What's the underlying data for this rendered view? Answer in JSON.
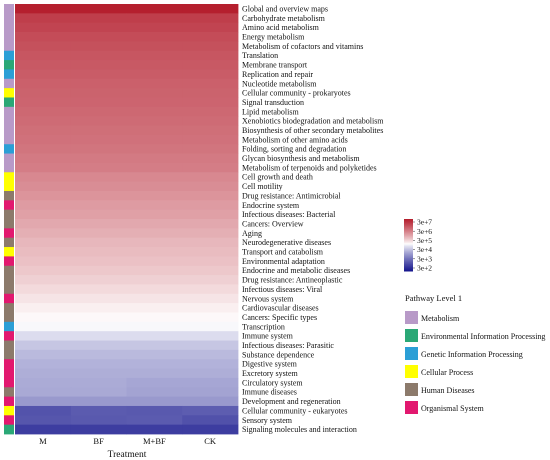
{
  "chart_data": {
    "type": "heatmap",
    "xlabel": "Treatment",
    "columns": [
      "M",
      "BF",
      "M+BF",
      "CK"
    ],
    "rows": [
      {
        "label": "Global and overview maps",
        "level1": "Metabolism",
        "values": [
          32000000.0,
          32000000.0,
          32000000.0,
          32000000.0
        ]
      },
      {
        "label": "Carbohydrate metabolism",
        "level1": "Metabolism",
        "values": [
          12000000.0,
          12000000.0,
          12000000.0,
          12000000.0
        ]
      },
      {
        "label": "Amino acid metabolism",
        "level1": "Metabolism",
        "values": [
          10000000.0,
          10000000.0,
          10000000.0,
          10000000.0
        ]
      },
      {
        "label": "Energy metabolism",
        "level1": "Metabolism",
        "values": [
          8000000.0,
          8000000.0,
          8000000.0,
          8000000.0
        ]
      },
      {
        "label": "Metabolism of cofactors and vitamins",
        "level1": "Metabolism",
        "values": [
          7000000.0,
          7000000.0,
          7000000.0,
          7000000.0
        ]
      },
      {
        "label": "Translation",
        "level1": "Genetic Information Processing",
        "values": [
          6000000.0,
          6000000.0,
          6000000.0,
          6000000.0
        ]
      },
      {
        "label": "Membrane transport",
        "level1": "Environmental Information Processing",
        "values": [
          5500000.0,
          5500000.0,
          5500000.0,
          5500000.0
        ]
      },
      {
        "label": "Replication and repair",
        "level1": "Genetic Information Processing",
        "values": [
          5000000.0,
          5000000.0,
          5000000.0,
          5000000.0
        ]
      },
      {
        "label": "Nucleotide metabolism",
        "level1": "Metabolism",
        "values": [
          4500000.0,
          4500000.0,
          4500000.0,
          4500000.0
        ]
      },
      {
        "label": "Cellular community - prokaryotes",
        "level1": "Cellular Process",
        "values": [
          4200000.0,
          4200000.0,
          4200000.0,
          4200000.0
        ]
      },
      {
        "label": "Signal transduction",
        "level1": "Environmental Information Processing",
        "values": [
          4000000.0,
          4000000.0,
          4000000.0,
          4000000.0
        ]
      },
      {
        "label": "Lipid metabolism",
        "level1": "Metabolism",
        "values": [
          3600000.0,
          3600000.0,
          3600000.0,
          3600000.0
        ]
      },
      {
        "label": "Xenobiotics biodegradation and metabolism",
        "level1": "Metabolism",
        "values": [
          3300000.0,
          3300000.0,
          3300000.0,
          3300000.0
        ]
      },
      {
        "label": "Biosynthesis of other secondary metabolites",
        "level1": "Metabolism",
        "values": [
          3000000.0,
          3000000.0,
          3000000.0,
          3000000.0
        ]
      },
      {
        "label": "Metabolism of other amino acids",
        "level1": "Metabolism",
        "values": [
          2800000.0,
          2800000.0,
          2800000.0,
          2800000.0
        ]
      },
      {
        "label": "Folding, sorting and degradation",
        "level1": "Genetic Information Processing",
        "values": [
          2500000.0,
          2500000.0,
          2500000.0,
          2500000.0
        ]
      },
      {
        "label": "Glycan biosynthesis and metabolism",
        "level1": "Metabolism",
        "values": [
          2200000.0,
          2200000.0,
          2200000.0,
          2200000.0
        ]
      },
      {
        "label": "Metabolism of terpenoids and polyketides",
        "level1": "Metabolism",
        "values": [
          2000000.0,
          2000000.0,
          2000000.0,
          2000000.0
        ]
      },
      {
        "label": "Cell growth and death",
        "level1": "Cellular Process",
        "values": [
          1500000.0,
          1500000.0,
          1500000.0,
          1500000.0
        ]
      },
      {
        "label": "Cell motility",
        "level1": "Cellular Process",
        "values": [
          1300000.0,
          1300000.0,
          1300000.0,
          1300000.0
        ]
      },
      {
        "label": "Drug resistance: Antimicrobial",
        "level1": "Human Diseases",
        "values": [
          1100000.0,
          1100000.0,
          1100000.0,
          1100000.0
        ]
      },
      {
        "label": "Endocrine system",
        "level1": "Organismal System",
        "values": [
          900000.0,
          900000.0,
          900000.0,
          900000.0
        ]
      },
      {
        "label": "Infectious diseases: Bacterial",
        "level1": "Human Diseases",
        "values": [
          800000.0,
          800000.0,
          800000.0,
          800000.0
        ]
      },
      {
        "label": "Cancers: Overview",
        "level1": "Human Diseases",
        "values": [
          650000.0,
          650000.0,
          650000.0,
          650000.0
        ]
      },
      {
        "label": "Aging",
        "level1": "Organismal System",
        "values": [
          550000.0,
          550000.0,
          550000.0,
          550000.0
        ]
      },
      {
        "label": "Neurodegenerative diseases",
        "level1": "Human Diseases",
        "values": [
          450000.0,
          450000.0,
          450000.0,
          450000.0
        ]
      },
      {
        "label": "Transport and catabolism",
        "level1": "Cellular Process",
        "values": [
          400000.0,
          400000.0,
          400000.0,
          400000.0
        ]
      },
      {
        "label": "Environmental adaptation",
        "level1": "Organismal System",
        "values": [
          350000.0,
          350000.0,
          350000.0,
          350000.0
        ]
      },
      {
        "label": "Endocrine and metabolic diseases",
        "level1": "Human Diseases",
        "values": [
          300000.0,
          300000.0,
          300000.0,
          300000.0
        ]
      },
      {
        "label": "Drug resistance: Antineoplastic",
        "level1": "Human Diseases",
        "values": [
          250000.0,
          250000.0,
          250000.0,
          250000.0
        ]
      },
      {
        "label": "Infectious diseases: Viral",
        "level1": "Human Diseases",
        "values": [
          200000.0,
          200000.0,
          200000.0,
          200000.0
        ]
      },
      {
        "label": "Nervous system",
        "level1": "Organismal System",
        "values": [
          160000.0,
          160000.0,
          160000.0,
          160000.0
        ]
      },
      {
        "label": "Cardiovascular diseases",
        "level1": "Human Diseases",
        "values": [
          130000.0,
          130000.0,
          130000.0,
          130000.0
        ]
      },
      {
        "label": "Cancers: Specific types",
        "level1": "Human Diseases",
        "values": [
          110000.0,
          110000.0,
          110000.0,
          110000.0
        ]
      },
      {
        "label": "Transcription",
        "level1": "Genetic Information Processing",
        "values": [
          90000.0,
          90000.0,
          90000.0,
          90000.0
        ]
      },
      {
        "label": "Immune system",
        "level1": "Organismal System",
        "values": [
          50000.0,
          50000.0,
          50000.0,
          50000.0
        ]
      },
      {
        "label": "Infectious diseases: Parasitic",
        "level1": "Human Diseases",
        "values": [
          30000.0,
          30000.0,
          30000.0,
          30000.0
        ]
      },
      {
        "label": "Substance dependence",
        "level1": "Human Diseases",
        "values": [
          22000.0,
          22000.0,
          22000.0,
          22000.0
        ]
      },
      {
        "label": "Digestive system",
        "level1": "Organismal System",
        "values": [
          18000.0,
          18000.0,
          18000.0,
          18000.0
        ]
      },
      {
        "label": "Excretory system",
        "level1": "Organismal System",
        "values": [
          16000.0,
          16000.0,
          16000.0,
          16000.0
        ]
      },
      {
        "label": "Circulatory system",
        "level1": "Organismal System",
        "values": [
          15000.0,
          15000.0,
          13000.0,
          13000.0
        ]
      },
      {
        "label": "Immune diseases",
        "level1": "Human Diseases",
        "values": [
          14000.0,
          14000.0,
          12000.0,
          12000.0
        ]
      },
      {
        "label": "Development and regeneration",
        "level1": "Organismal System",
        "values": [
          9000.0,
          9000.0,
          9000.0,
          9000.0
        ]
      },
      {
        "label": "Cellular community - eukaryotes",
        "level1": "Cellular Process",
        "values": [
          1200.0,
          1500.0,
          1400.0,
          1600.0
        ]
      },
      {
        "label": "Sensory system",
        "level1": "Organismal System",
        "values": [
          1300.0,
          1400.0,
          1500.0,
          1100.0
        ]
      },
      {
        "label": "Signaling molecules and interaction",
        "level1": "Environmental Information Processing",
        "values": [
          600.0,
          600.0,
          600.0,
          600.0
        ]
      }
    ],
    "colorbar": {
      "scale": "log",
      "range": [
        200,
        30000000
      ],
      "ticks": [
        {
          "label": "3e+7",
          "value": 30000000
        },
        {
          "label": "3e+6",
          "value": 3000000
        },
        {
          "label": "3e+5",
          "value": 300000
        },
        {
          "label": "3e+4",
          "value": 30000
        },
        {
          "label": "3e+3",
          "value": 3000
        },
        {
          "label": "3e+2",
          "value": 300
        }
      ],
      "colors": [
        "#1a1a8f",
        "#ffffff",
        "#b51f2e"
      ]
    },
    "pathway_legend": {
      "title": "Pathway Level 1",
      "items": [
        {
          "name": "Metabolism",
          "color": "#b89ac8"
        },
        {
          "name": "Environmental Information Processing",
          "color": "#2aa876"
        },
        {
          "name": "Genetic Information Processing",
          "color": "#2b9fd6"
        },
        {
          "name": "Cellular Process",
          "color": "#ffff00"
        },
        {
          "name": "Human Diseases",
          "color": "#8c7a6b"
        },
        {
          "name": "Organismal System",
          "color": "#e2186f"
        }
      ]
    }
  }
}
